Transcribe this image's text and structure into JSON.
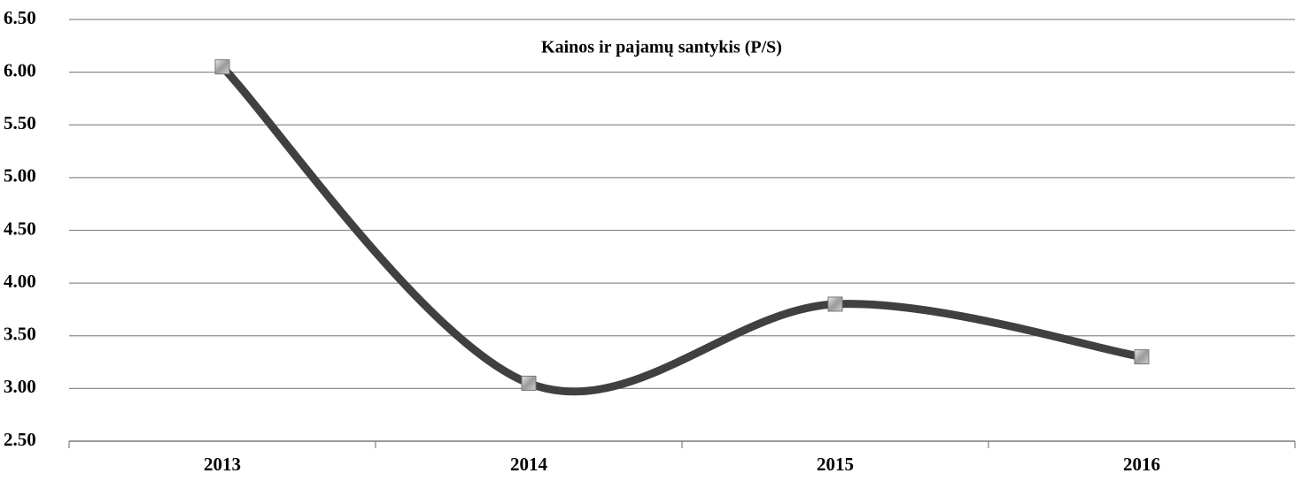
{
  "chart_data": {
    "type": "line",
    "title": "Kainos ir pajamų santykis (P/S)",
    "categories": [
      "2013",
      "2014",
      "2015",
      "2016"
    ],
    "series": [
      {
        "name": "P/S",
        "color": "#404040",
        "values": [
          6.05,
          3.05,
          3.8,
          3.3
        ]
      }
    ],
    "ylim": [
      2.5,
      6.5
    ],
    "yticks": [
      {
        "value": 2.5,
        "label": "2.50"
      },
      {
        "value": 3,
        "label": "3.00"
      },
      {
        "value": 3.5,
        "label": "3.50"
      },
      {
        "value": 4,
        "label": "4.00"
      },
      {
        "value": 4.5,
        "label": "4.50"
      },
      {
        "value": 5,
        "label": "5.00"
      },
      {
        "value": 5.5,
        "label": "5.50"
      },
      {
        "value": 6,
        "label": "6.00"
      },
      {
        "value": 6.5,
        "label": "6.50"
      }
    ],
    "grid": true,
    "smooth": true
  }
}
